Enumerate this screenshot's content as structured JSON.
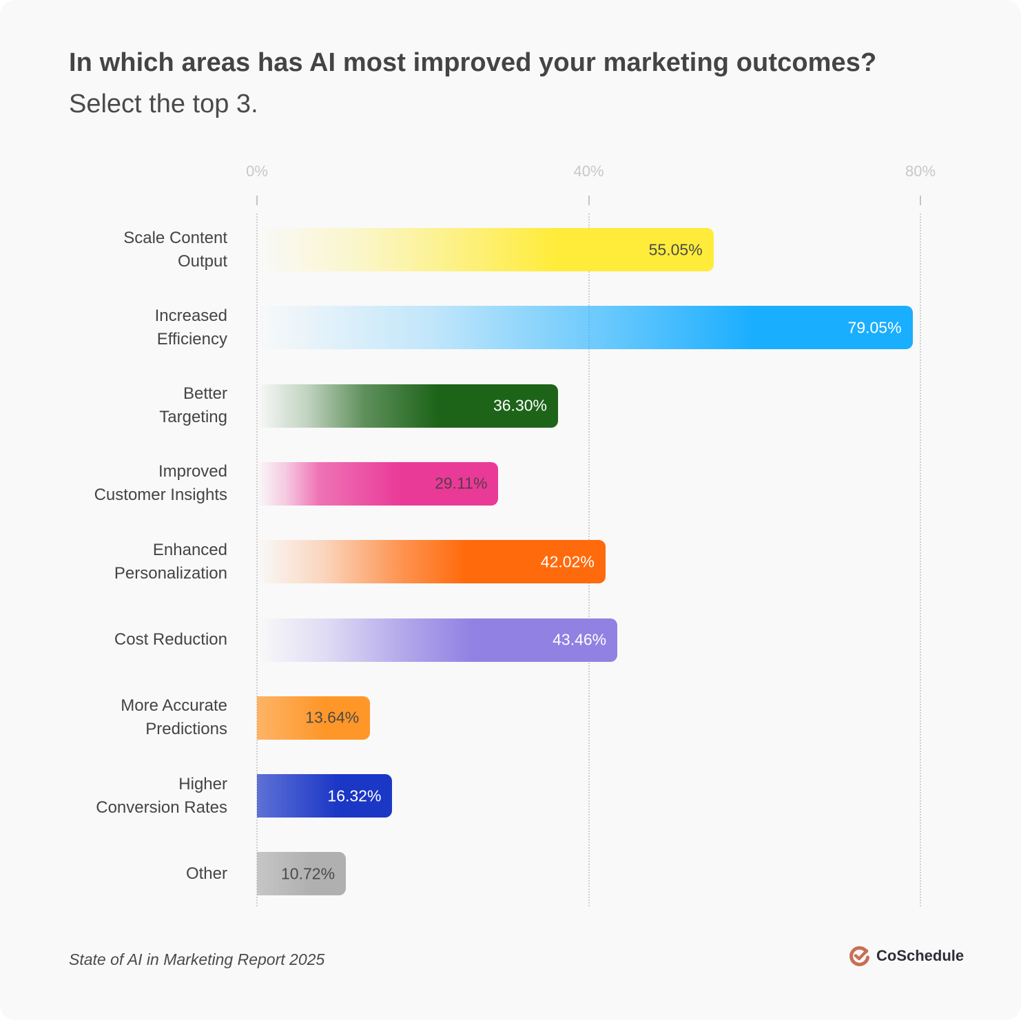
{
  "header": {
    "title": "In which areas has AI most improved your marketing outcomes?",
    "subtitle": "Select the top 3."
  },
  "axis": {
    "ticks": [
      {
        "label": "0%",
        "value": 0
      },
      {
        "label": "40%",
        "value": 40
      },
      {
        "label": "80%",
        "value": 80
      }
    ]
  },
  "bars": [
    {
      "label_lines": [
        "Scale Content",
        "Output"
      ],
      "value_label": "55.05%",
      "value": 55.05,
      "color": "#ffec3a",
      "text_color": "#4a4a4a"
    },
    {
      "label_lines": [
        "Increased",
        "Efficiency"
      ],
      "value_label": "79.05%",
      "value": 79.05,
      "color": "#1aaeff",
      "text_color": "#ffffff"
    },
    {
      "label_lines": [
        "Better",
        "Targeting"
      ],
      "value_label": "36.30%",
      "value": 36.3,
      "color": "#1d6419",
      "text_color": "#ffffff"
    },
    {
      "label_lines": [
        "Improved",
        "Customer Insights"
      ],
      "value_label": "29.11%",
      "value": 29.11,
      "color": "#ea3a98",
      "text_color": "#5a3a4a"
    },
    {
      "label_lines": [
        "Enhanced",
        "Personalization"
      ],
      "value_label": "42.02%",
      "value": 42.02,
      "color": "#ff6a0c",
      "text_color": "#ffffff"
    },
    {
      "label_lines": [
        "Cost Reduction"
      ],
      "value_label": "43.46%",
      "value": 43.46,
      "color": "#9181e3",
      "text_color": "#ffffff"
    },
    {
      "label_lines": [
        "More Accurate",
        "Predictions"
      ],
      "value_label": "13.64%",
      "value": 13.64,
      "color": "#ff9628",
      "text_color": "#4a4a4a"
    },
    {
      "label_lines": [
        "Higher",
        "Conversion Rates"
      ],
      "value_label": "16.32%",
      "value": 16.32,
      "color": "#1b37c6",
      "text_color": "#ffffff"
    },
    {
      "label_lines": [
        "Other"
      ],
      "value_label": "10.72%",
      "value": 10.72,
      "color": "#b0b0b0",
      "text_color": "#4a4a4a"
    }
  ],
  "footer": {
    "source": "State of AI in Marketing Report 2025",
    "brand_name": "CoSchedule",
    "brand_color": "#c96f55"
  },
  "chart_data": {
    "type": "bar",
    "orientation": "horizontal",
    "title": "In which areas has AI most improved your marketing outcomes?",
    "subtitle": "Select the top 3.",
    "categories": [
      "Scale Content Output",
      "Increased Efficiency",
      "Better Targeting",
      "Improved Customer Insights",
      "Enhanced Personalization",
      "Cost Reduction",
      "More Accurate Predictions",
      "Higher Conversion Rates",
      "Other"
    ],
    "values": [
      55.05,
      79.05,
      36.3,
      29.11,
      42.02,
      43.46,
      13.64,
      16.32,
      10.72
    ],
    "value_labels": [
      "55.05%",
      "79.05%",
      "36.30%",
      "29.11%",
      "42.02%",
      "43.46%",
      "13.64%",
      "16.32%",
      "10.72%"
    ],
    "xlabel": "",
    "ylabel": "",
    "xlim": [
      0,
      80
    ],
    "x_ticks": [
      "0%",
      "40%",
      "80%"
    ],
    "grid": "vertical dotted at ticks",
    "legend": "none",
    "source": "State of AI in Marketing Report 2025"
  }
}
